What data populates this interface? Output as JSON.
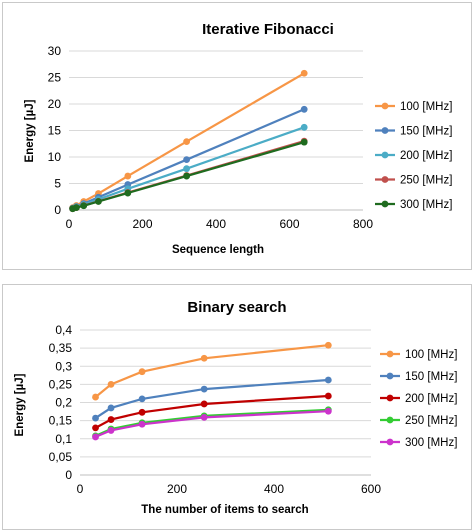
{
  "chart_data": [
    {
      "type": "line",
      "title": "Iterative Fibonacci",
      "xlabel": "Sequence length",
      "ylabel": "Energy [µJ]",
      "xlim": [
        0,
        800
      ],
      "ylim": [
        0,
        30
      ],
      "xticks": [
        "0",
        "200",
        "400",
        "600",
        "800"
      ],
      "yticks": [
        "0",
        "5",
        "10",
        "15",
        "20",
        "25",
        "30"
      ],
      "grid": true,
      "legend_position": "right",
      "x": [
        10,
        20,
        40,
        80,
        160,
        320,
        640
      ],
      "series": [
        {
          "name": "100 [MHz]",
          "color": "#f79646",
          "values": [
            0.45,
            0.85,
            1.6,
            3.1,
            6.4,
            12.9,
            25.8
          ]
        },
        {
          "name": "150 [MHz]",
          "color": "#4f81bd",
          "values": [
            0.35,
            0.65,
            1.2,
            2.4,
            4.8,
            9.5,
            19.0
          ]
        },
        {
          "name": "200 [MHz]",
          "color": "#4bacc6",
          "values": [
            0.3,
            0.55,
            1.0,
            2.0,
            4.0,
            7.8,
            15.6
          ]
        },
        {
          "name": "250 [MHz]",
          "color": "#c0504d",
          "values": [
            0.25,
            0.45,
            0.85,
            1.65,
            3.3,
            6.5,
            13.0
          ]
        },
        {
          "name": "300 [MHz]",
          "color": "#1f6b1f",
          "values": [
            0.25,
            0.45,
            0.8,
            1.6,
            3.2,
            6.4,
            12.8
          ]
        }
      ]
    },
    {
      "type": "line",
      "title": "Binary search",
      "xlabel": "The number of items to search",
      "ylabel": "Energy [µJ]",
      "xlim": [
        0,
        600
      ],
      "ylim": [
        0,
        0.4
      ],
      "xticks": [
        "0",
        "200",
        "400",
        "600"
      ],
      "yticks": [
        "0",
        "0,05",
        "0,1",
        "0,15",
        "0,2",
        "0,25",
        "0,3",
        "0,35",
        "0,4"
      ],
      "grid": true,
      "legend_position": "right",
      "x": [
        32,
        64,
        128,
        256,
        512
      ],
      "series": [
        {
          "name": "100 [MHz]",
          "color": "#f79646",
          "values": [
            0.215,
            0.25,
            0.285,
            0.322,
            0.358
          ]
        },
        {
          "name": "150 [MHz]",
          "color": "#4f81bd",
          "values": [
            0.157,
            0.185,
            0.21,
            0.237,
            0.262
          ]
        },
        {
          "name": "200 [MHz]",
          "color": "#c00000",
          "values": [
            0.13,
            0.153,
            0.173,
            0.196,
            0.218
          ]
        },
        {
          "name": "250 [MHz]",
          "color": "#33cc33",
          "values": [
            0.108,
            0.127,
            0.144,
            0.163,
            0.18
          ]
        },
        {
          "name": "300 [MHz]",
          "color": "#cc33cc",
          "values": [
            0.105,
            0.123,
            0.14,
            0.159,
            0.176
          ]
        }
      ]
    }
  ]
}
